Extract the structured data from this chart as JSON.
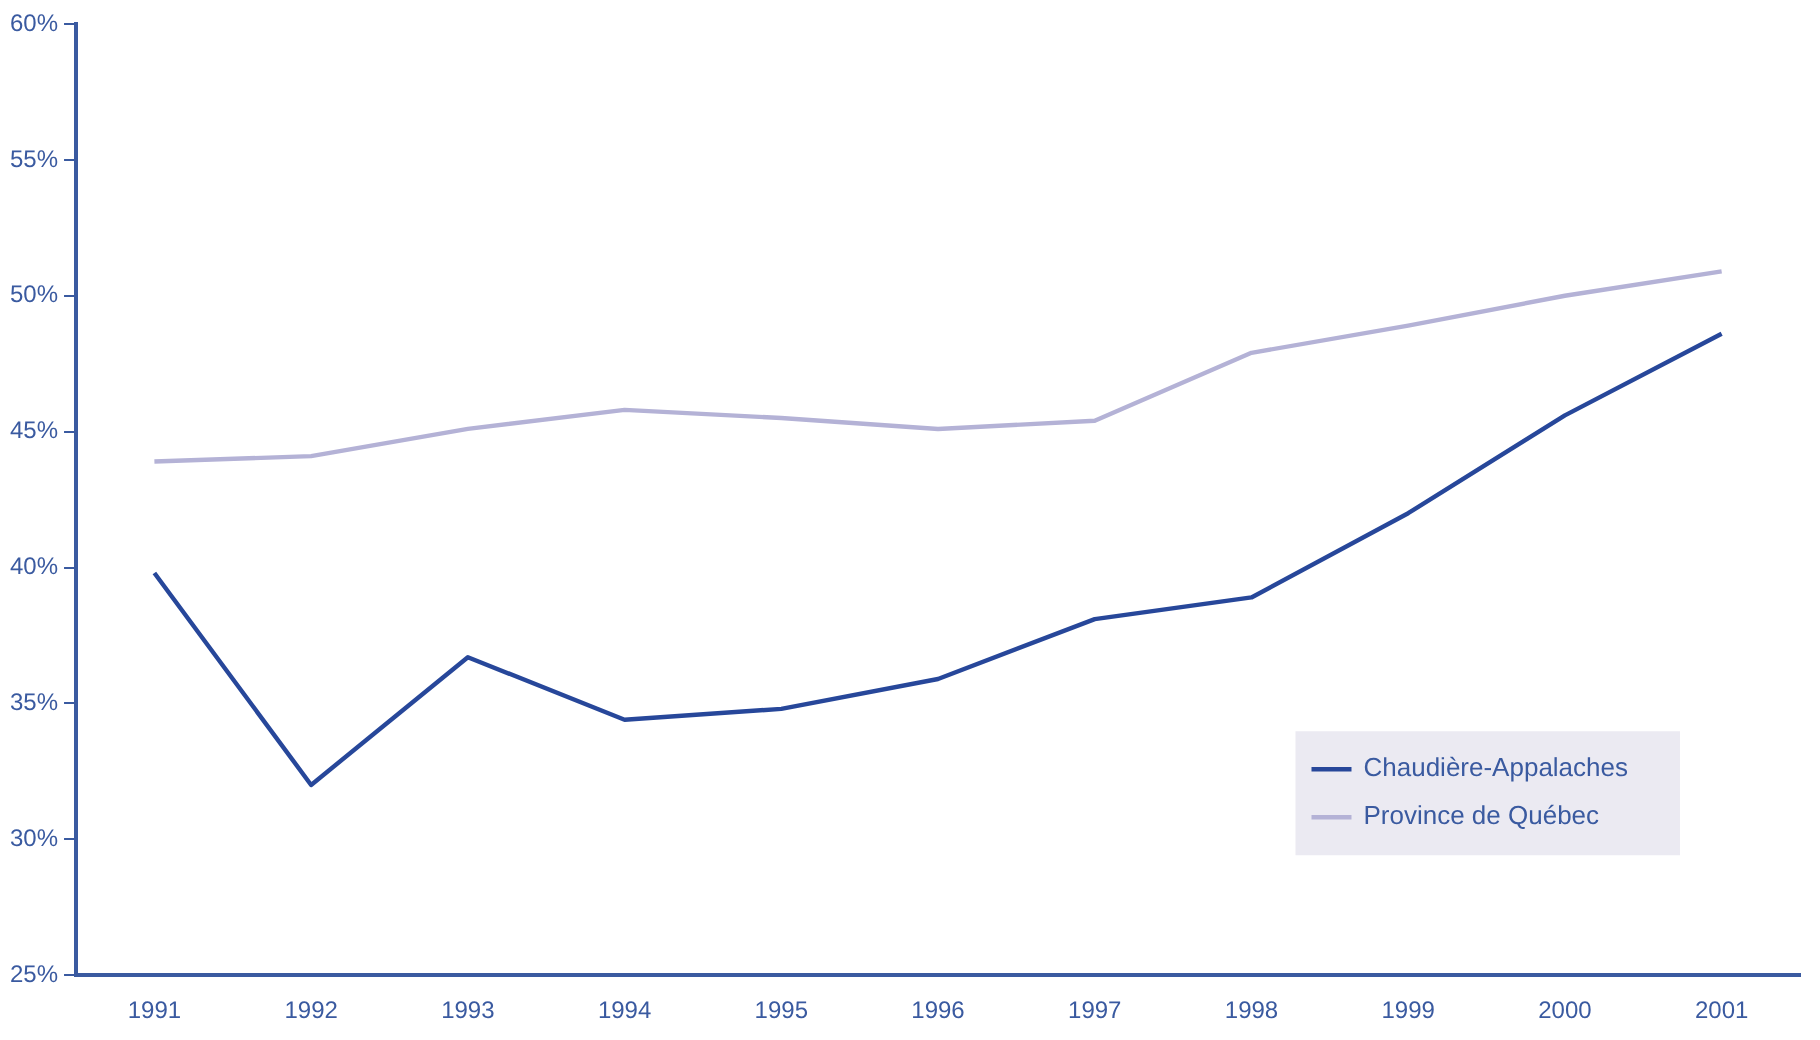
{
  "chart_data": {
    "type": "line",
    "categories": [
      "1991",
      "1992",
      "1993",
      "1994",
      "1995",
      "1996",
      "1997",
      "1998",
      "1999",
      "2000",
      "2001"
    ],
    "series": [
      {
        "name": "Chaudière-Appalaches",
        "color": "#27479a",
        "values": [
          39.8,
          32.0,
          36.7,
          34.4,
          34.8,
          35.9,
          38.1,
          38.9,
          42.0,
          45.6,
          48.6
        ]
      },
      {
        "name": "Province de Québec",
        "color": "#b4b2d6",
        "values": [
          43.9,
          44.1,
          45.1,
          45.8,
          45.5,
          45.1,
          45.4,
          47.9,
          48.9,
          50.0,
          50.9
        ]
      }
    ],
    "ylim": [
      25,
      60
    ],
    "yticks": [
      {
        "value": 25,
        "label": "25%"
      },
      {
        "value": 30,
        "label": "30%"
      },
      {
        "value": 35,
        "label": "35%"
      },
      {
        "value": 40,
        "label": "40%"
      },
      {
        "value": 45,
        "label": "45%"
      },
      {
        "value": 50,
        "label": "50%"
      },
      {
        "value": 55,
        "label": "55%"
      },
      {
        "value": 60,
        "label": "60%"
      }
    ],
    "grid": false,
    "legend": "bottom right",
    "marker": "none",
    "line_style": "solid"
  }
}
